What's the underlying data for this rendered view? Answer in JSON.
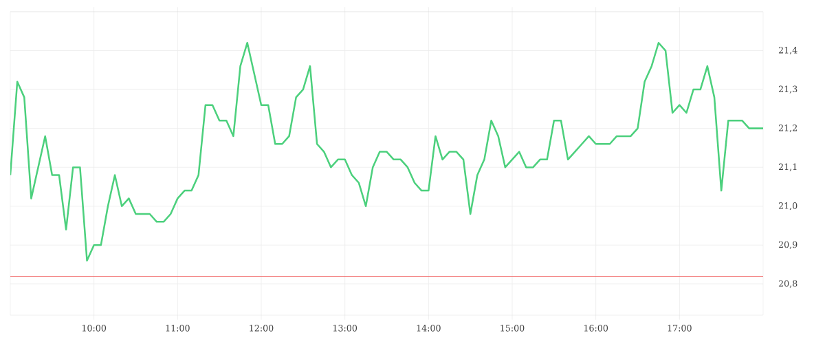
{
  "chart_data": {
    "type": "line",
    "x": [
      9.0,
      9.0833,
      9.1667,
      9.25,
      9.3333,
      9.4167,
      9.5,
      9.5833,
      9.6667,
      9.75,
      9.8333,
      9.9167,
      10.0,
      10.0833,
      10.1667,
      10.25,
      10.3333,
      10.4167,
      10.5,
      10.5833,
      10.6667,
      10.75,
      10.8333,
      10.9167,
      11.0,
      11.0833,
      11.1667,
      11.25,
      11.3333,
      11.4167,
      11.5,
      11.5833,
      11.6667,
      11.75,
      11.8333,
      11.9167,
      12.0,
      12.0833,
      12.1667,
      12.25,
      12.3333,
      12.4167,
      12.5,
      12.5833,
      12.6667,
      12.75,
      12.8333,
      12.9167,
      13.0,
      13.0833,
      13.1667,
      13.25,
      13.3333,
      13.4167,
      13.5,
      13.5833,
      13.6667,
      13.75,
      13.8333,
      13.9167,
      14.0,
      14.0833,
      14.1667,
      14.25,
      14.3333,
      14.4167,
      14.5,
      14.5833,
      14.6667,
      14.75,
      14.8333,
      14.9167,
      15.0,
      15.0833,
      15.1667,
      15.25,
      15.3333,
      15.4167,
      15.5,
      15.5833,
      15.6667,
      15.75,
      15.8333,
      15.9167,
      16.0,
      16.0833,
      16.1667,
      16.25,
      16.3333,
      16.4167,
      16.5,
      16.5833,
      16.6667,
      16.75,
      16.8333,
      16.9167,
      17.0,
      17.0833,
      17.1667,
      17.25,
      17.3333,
      17.4167,
      17.5,
      17.5833,
      17.6667,
      17.75,
      17.8333,
      17.9167,
      18.0
    ],
    "values": [
      21.08,
      21.32,
      21.28,
      21.02,
      21.1,
      21.18,
      21.08,
      21.08,
      20.94,
      21.1,
      21.1,
      20.86,
      20.9,
      20.9,
      21.0,
      21.08,
      21.0,
      21.02,
      20.98,
      20.98,
      20.98,
      20.96,
      20.96,
      20.98,
      21.02,
      21.04,
      21.04,
      21.08,
      21.26,
      21.26,
      21.22,
      21.22,
      21.18,
      21.36,
      21.42,
      21.34,
      21.26,
      21.26,
      21.16,
      21.16,
      21.18,
      21.28,
      21.3,
      21.36,
      21.16,
      21.14,
      21.1,
      21.12,
      21.12,
      21.08,
      21.06,
      21.0,
      21.1,
      21.14,
      21.14,
      21.12,
      21.12,
      21.1,
      21.06,
      21.04,
      21.04,
      21.18,
      21.12,
      21.14,
      21.14,
      21.12,
      20.98,
      21.08,
      21.12,
      21.22,
      21.18,
      21.1,
      21.12,
      21.14,
      21.1,
      21.1,
      21.12,
      21.12,
      21.22,
      21.22,
      21.12,
      21.14,
      21.16,
      21.18,
      21.16,
      21.16,
      21.16,
      21.18,
      21.18,
      21.18,
      21.2,
      21.32,
      21.36,
      21.42,
      21.4,
      21.24,
      21.26,
      21.24,
      21.3,
      21.3,
      21.36,
      21.28,
      21.04,
      21.22,
      21.22,
      21.22,
      21.2,
      21.2,
      21.2
    ],
    "color": "#4cd07d",
    "xlim": [
      9,
      18
    ],
    "ylim": [
      20.72,
      21.5
    ],
    "xticks": [
      {
        "value": 10,
        "label": "10:00"
      },
      {
        "value": 11,
        "label": "11:00"
      },
      {
        "value": 12,
        "label": "12:00"
      },
      {
        "value": 13,
        "label": "13:00"
      },
      {
        "value": 14,
        "label": "14:00"
      },
      {
        "value": 15,
        "label": "15:00"
      },
      {
        "value": 16,
        "label": "16:00"
      },
      {
        "value": 17,
        "label": "17:00"
      }
    ],
    "yticks": [
      {
        "value": 20.8,
        "label": "20,8"
      },
      {
        "value": 20.9,
        "label": "20,9"
      },
      {
        "value": 21.0,
        "label": "21,0"
      },
      {
        "value": 21.1,
        "label": "21,1"
      },
      {
        "value": 21.2,
        "label": "21,2"
      },
      {
        "value": 21.3,
        "label": "21,3"
      },
      {
        "value": 21.4,
        "label": "21,4"
      },
      {
        "value": 21.5,
        "label": null
      }
    ],
    "grid": true,
    "ref_lines": [
      {
        "axis": "y",
        "value": 20.82,
        "color": "#f05a5a"
      }
    ]
  }
}
